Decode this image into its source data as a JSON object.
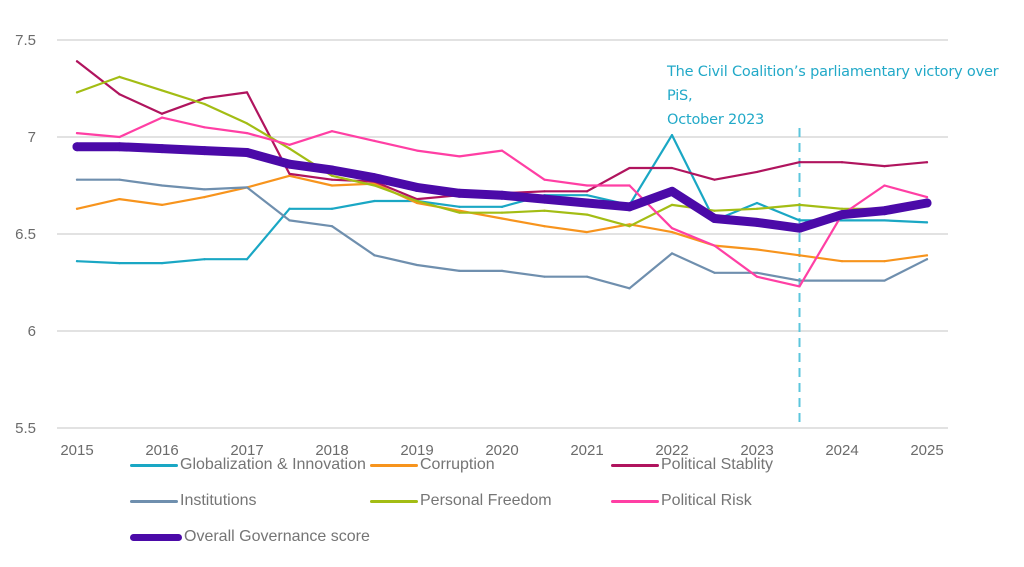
{
  "chart_data": {
    "type": "line",
    "title": "",
    "xlabel": "",
    "ylabel": "",
    "ylim": [
      5.5,
      7.5
    ],
    "xlim": [
      2015,
      2025
    ],
    "yticks": [
      "7.5",
      "7",
      "6.5",
      "6",
      "5.5"
    ],
    "ytick_values": [
      7.5,
      7.0,
      6.5,
      6.0,
      5.5
    ],
    "xticks": [
      "2015",
      "2016",
      "2017",
      "2018",
      "2019",
      "2020",
      "2021",
      "2022",
      "2023",
      "2024",
      "2025"
    ],
    "xtick_values": [
      2015,
      2016,
      2017,
      2018,
      2019,
      2020,
      2021,
      2022,
      2023,
      2024,
      2025
    ],
    "grid": "horizontal",
    "legend_position": "bottom",
    "x": [
      2015,
      2015.5,
      2016,
      2016.5,
      2017,
      2017.5,
      2018,
      2018.5,
      2019,
      2019.5,
      2020,
      2020.5,
      2021,
      2021.5,
      2022,
      2022.5,
      2023,
      2023.5,
      2024,
      2024.5,
      2025
    ],
    "series": [
      {
        "name": "Globalization & Innovation",
        "key": "globalization",
        "color": "#1aa7c4",
        "width": "normal",
        "values": [
          6.36,
          6.35,
          6.35,
          6.37,
          6.37,
          6.63,
          6.63,
          6.67,
          6.67,
          6.64,
          6.64,
          6.7,
          6.7,
          6.65,
          7.01,
          6.57,
          6.66,
          6.57,
          6.57,
          6.57,
          6.56
        ]
      },
      {
        "name": "Corruption",
        "key": "corruption",
        "color": "#f7941d",
        "width": "normal",
        "values": [
          6.63,
          6.68,
          6.65,
          6.69,
          6.74,
          6.8,
          6.75,
          6.76,
          6.66,
          6.62,
          6.58,
          6.54,
          6.51,
          6.55,
          6.51,
          6.44,
          6.42,
          6.39,
          6.36,
          6.36,
          6.39
        ]
      },
      {
        "name": "Political Stablity",
        "key": "political_stability",
        "color": "#b0145e",
        "width": "normal",
        "values": [
          7.39,
          7.22,
          7.12,
          7.2,
          7.23,
          6.81,
          6.78,
          6.77,
          6.68,
          6.7,
          6.71,
          6.72,
          6.72,
          6.84,
          6.84,
          6.78,
          6.82,
          6.87,
          6.87,
          6.85,
          6.87
        ]
      },
      {
        "name": "Institutions",
        "key": "institutions",
        "color": "#6f8fae",
        "width": "normal",
        "values": [
          6.78,
          6.78,
          6.75,
          6.73,
          6.74,
          6.57,
          6.54,
          6.39,
          6.34,
          6.31,
          6.31,
          6.28,
          6.28,
          6.22,
          6.4,
          6.3,
          6.3,
          6.26,
          6.26,
          6.26,
          6.37
        ]
      },
      {
        "name": "Personal Freedom",
        "key": "personal_freedom",
        "color": "#a3bd14",
        "width": "normal",
        "values": [
          7.23,
          7.31,
          7.24,
          7.17,
          7.07,
          6.94,
          6.8,
          6.75,
          6.67,
          6.61,
          6.61,
          6.62,
          6.6,
          6.54,
          6.65,
          6.62,
          6.63,
          6.65,
          6.63,
          6.63,
          6.66
        ]
      },
      {
        "name": "Political Risk",
        "key": "political_risk",
        "color": "#ff3fa4",
        "width": "normal",
        "values": [
          7.02,
          7.0,
          7.1,
          7.05,
          7.02,
          6.96,
          7.03,
          6.98,
          6.93,
          6.9,
          6.93,
          6.78,
          6.75,
          6.75,
          6.53,
          6.44,
          6.28,
          6.23,
          6.6,
          6.75,
          6.69
        ]
      },
      {
        "name": "Overall Governance score",
        "key": "overall",
        "color": "#4b0aa8",
        "width": "thick",
        "values": [
          6.95,
          6.95,
          6.94,
          6.93,
          6.92,
          6.86,
          6.83,
          6.79,
          6.74,
          6.71,
          6.7,
          6.68,
          6.66,
          6.64,
          6.72,
          6.58,
          6.56,
          6.53,
          6.6,
          6.62,
          6.66
        ]
      }
    ],
    "annotations": [
      {
        "type": "vertical-dashed-line",
        "x": 2023.5,
        "color": "#5cc6dc",
        "text_line1": "The Civil Coalition’s parliamentary victory over PiS,",
        "text_line2": "October 2023",
        "text_color": "#22a9c8"
      }
    ]
  }
}
